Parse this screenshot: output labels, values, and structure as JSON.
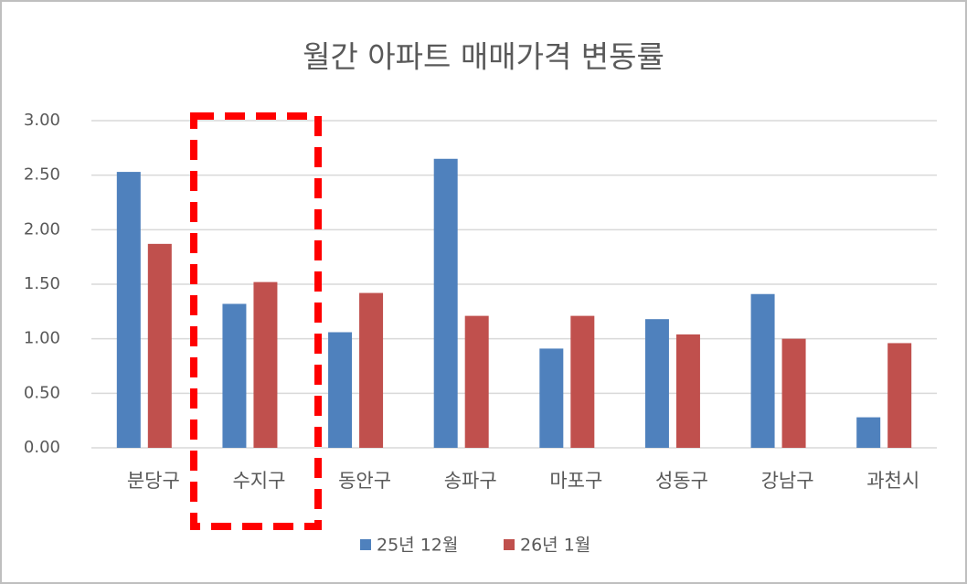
{
  "chart_data": {
    "type": "bar",
    "title": "월간 아파트 매매가격 변동률",
    "categories": [
      "분당구",
      "수지구",
      "동안구",
      "송파구",
      "마포구",
      "성동구",
      "강남구",
      "과천시"
    ],
    "series": [
      {
        "name": "25년 12월",
        "color": "#4f81bd",
        "values": [
          2.53,
          1.32,
          1.06,
          2.65,
          0.91,
          1.18,
          1.41,
          0.28
        ]
      },
      {
        "name": "26년 1월",
        "color": "#c0504d",
        "values": [
          1.87,
          1.52,
          1.42,
          1.21,
          1.21,
          1.04,
          1.0,
          0.96
        ]
      }
    ],
    "ylim": [
      0,
      3
    ],
    "yticks": [
      {
        "value": 0,
        "label": "0.00"
      },
      {
        "value": 0.5,
        "label": "0.50"
      },
      {
        "value": 1,
        "label": "1.00"
      },
      {
        "value": 1.5,
        "label": "1.50"
      },
      {
        "value": 2,
        "label": "2.00"
      },
      {
        "value": 2.5,
        "label": "2.50"
      },
      {
        "value": 3,
        "label": "3.00"
      }
    ],
    "grid": true,
    "legend": "bottom"
  }
}
